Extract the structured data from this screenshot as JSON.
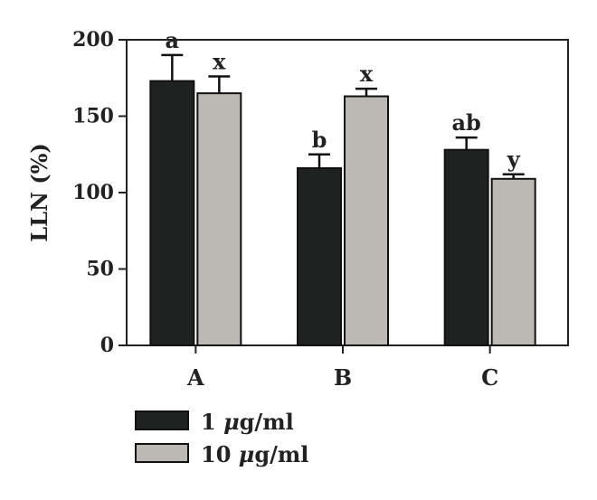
{
  "chart_data": {
    "type": "bar",
    "ylabel": "LLN (%)",
    "xlabel": "",
    "ylim": [
      0,
      200
    ],
    "yticks": [
      0,
      50,
      100,
      150,
      200
    ],
    "categories": [
      "A",
      "B",
      "C"
    ],
    "legend_placement": "bottom-left",
    "series": [
      {
        "name": "1 μg/ml",
        "name_prefix": "1 ",
        "name_mu": "μ",
        "name_suffix": "g/ml",
        "color": "#1e2220",
        "values": [
          173,
          116,
          128
        ],
        "errors": [
          17,
          9,
          8
        ],
        "labels": [
          "a",
          "b",
          "ab"
        ]
      },
      {
        "name": "10 μg/ml",
        "name_prefix": "10 ",
        "name_mu": "μ",
        "name_suffix": "g/ml",
        "color": "#bcb8b4",
        "values": [
          165,
          163,
          109
        ],
        "errors": [
          11,
          5,
          3
        ],
        "labels": [
          "x",
          "x",
          "y"
        ]
      }
    ]
  }
}
